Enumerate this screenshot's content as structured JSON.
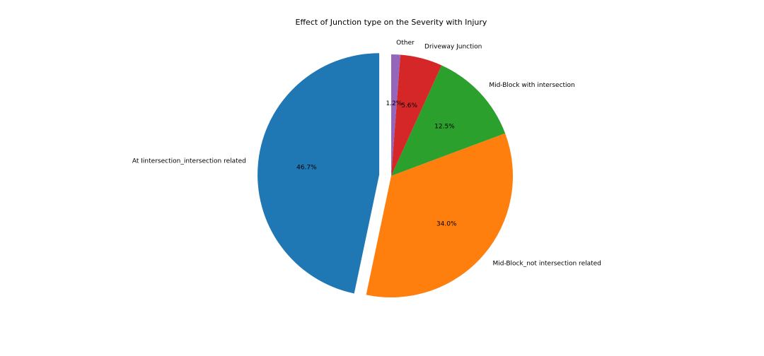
{
  "chart_data": {
    "type": "pie",
    "title": "Effect of Junction type on the Severity with Injury",
    "slices": [
      {
        "label": "At Iintersection_intersection related",
        "value": 46.7,
        "pct_label": "46.7%",
        "color": "#1f77b4",
        "exploded": true
      },
      {
        "label": "Mid-Block_not intersection related",
        "value": 34.0,
        "pct_label": "34.0%",
        "color": "#ff7f0e",
        "exploded": false
      },
      {
        "label": "Mid-Block with intersection",
        "value": 12.5,
        "pct_label": "12.5%",
        "color": "#2ca02c",
        "exploded": false
      },
      {
        "label": "Driveway Junction",
        "value": 5.6,
        "pct_label": "5.6%",
        "color": "#d62728",
        "exploded": false
      },
      {
        "label": "Other",
        "value": 1.2,
        "pct_label": "1.2%",
        "color": "#9467bd",
        "exploded": false
      }
    ],
    "start_angle_deg": 90,
    "direction": "counterclockwise",
    "legend": "none"
  }
}
